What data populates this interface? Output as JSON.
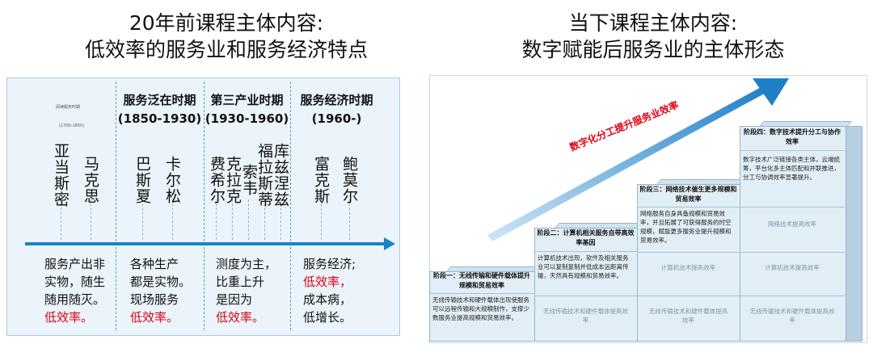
{
  "left_title": {
    "line1": "20年前课程主体内容:",
    "line2": "低效率的服务业和服务经济特点"
  },
  "right_title": {
    "line1": "当下课程主体内容:",
    "line2": "数字赋能后服务业的主体形态"
  },
  "left_panel": {
    "periods": [
      {
        "label": "",
        "years": "",
        "tiny_label": "阅读服务时期",
        "tiny_years": "(1700-1850)"
      },
      {
        "label": "服务泛在时期",
        "years": "(1850-1930)"
      },
      {
        "label": "第三产业时期",
        "years": "(1930-1960)"
      },
      {
        "label": "服务经济时期",
        "years": "(1960-)"
      }
    ],
    "names": [
      "亚当斯密",
      "马克思",
      "巴斯夏",
      "卡尔松",
      "费希尔",
      "克拉克",
      "索韦",
      "福拉斯蒂",
      "库兹涅兹",
      "富克斯",
      "鲍莫尔"
    ],
    "descriptions": [
      {
        "lines": [
          "服务产出非",
          "实物，随生",
          "随用随灭。"
        ],
        "red": "低效率。"
      },
      {
        "lines": [
          "各种生产",
          "都是实物。",
          "现场服务"
        ],
        "red": "低效率。"
      },
      {
        "lines": [
          "测度为主，",
          "比重上升",
          "是因为"
        ],
        "red": "低效率。"
      },
      {
        "lines": [
          "服务经济;"
        ],
        "red": "低效率，",
        "after": [
          "成本病，",
          "低增长。"
        ]
      }
    ]
  },
  "right_panel": {
    "arrow_label": "数字化分工提升服务业效率",
    "stages": [
      {
        "title": "阶段一：无线传输和硬件载体提升规模和贸易效率",
        "text": "无线传输技术和硬件载体出现使服务可以远程传输和大规模制作，支撑少数服务业提高规模和贸易效率。",
        "faded": [
          "无线传输技术和硬件载体提高效率"
        ]
      },
      {
        "title": "阶段二：计算机相关服务自带高效率基因",
        "text": "计算机技术出现，软件及相关服务业可以复制复制并低成本远距离传输，天然具有规模和贸易效率。",
        "faded": [
          "无线传输技术和硬件载体提高效率"
        ]
      },
      {
        "title": "阶段三：网络技术催生更多规模和贸易效率",
        "text": "网络服务自身具备规模和贸易效率，并且拓展了可获得服务的时空规模，赋能更多服务业提升规模和贸易效率。",
        "faded": [
          "计算机技术提高效率",
          "无线传输技术和硬件载体提高效率"
        ]
      },
      {
        "title": "阶段四：数字技术提升分工与协作效率",
        "text": "数字技术广泛链接各类主体，云端统筹，平台化多主体匹配和并联推进，分工与协调效率显著提升。",
        "faded": [
          "网络技术提高效率",
          "计算机技术提高效率",
          "无线传输技术和硬件载体提高效率"
        ]
      }
    ]
  },
  "colors": {
    "timeline": "#1a84c4",
    "highlight": "#e00012",
    "panel_bg": "#eaf4fa",
    "stage_bg": "#e2eef6"
  }
}
